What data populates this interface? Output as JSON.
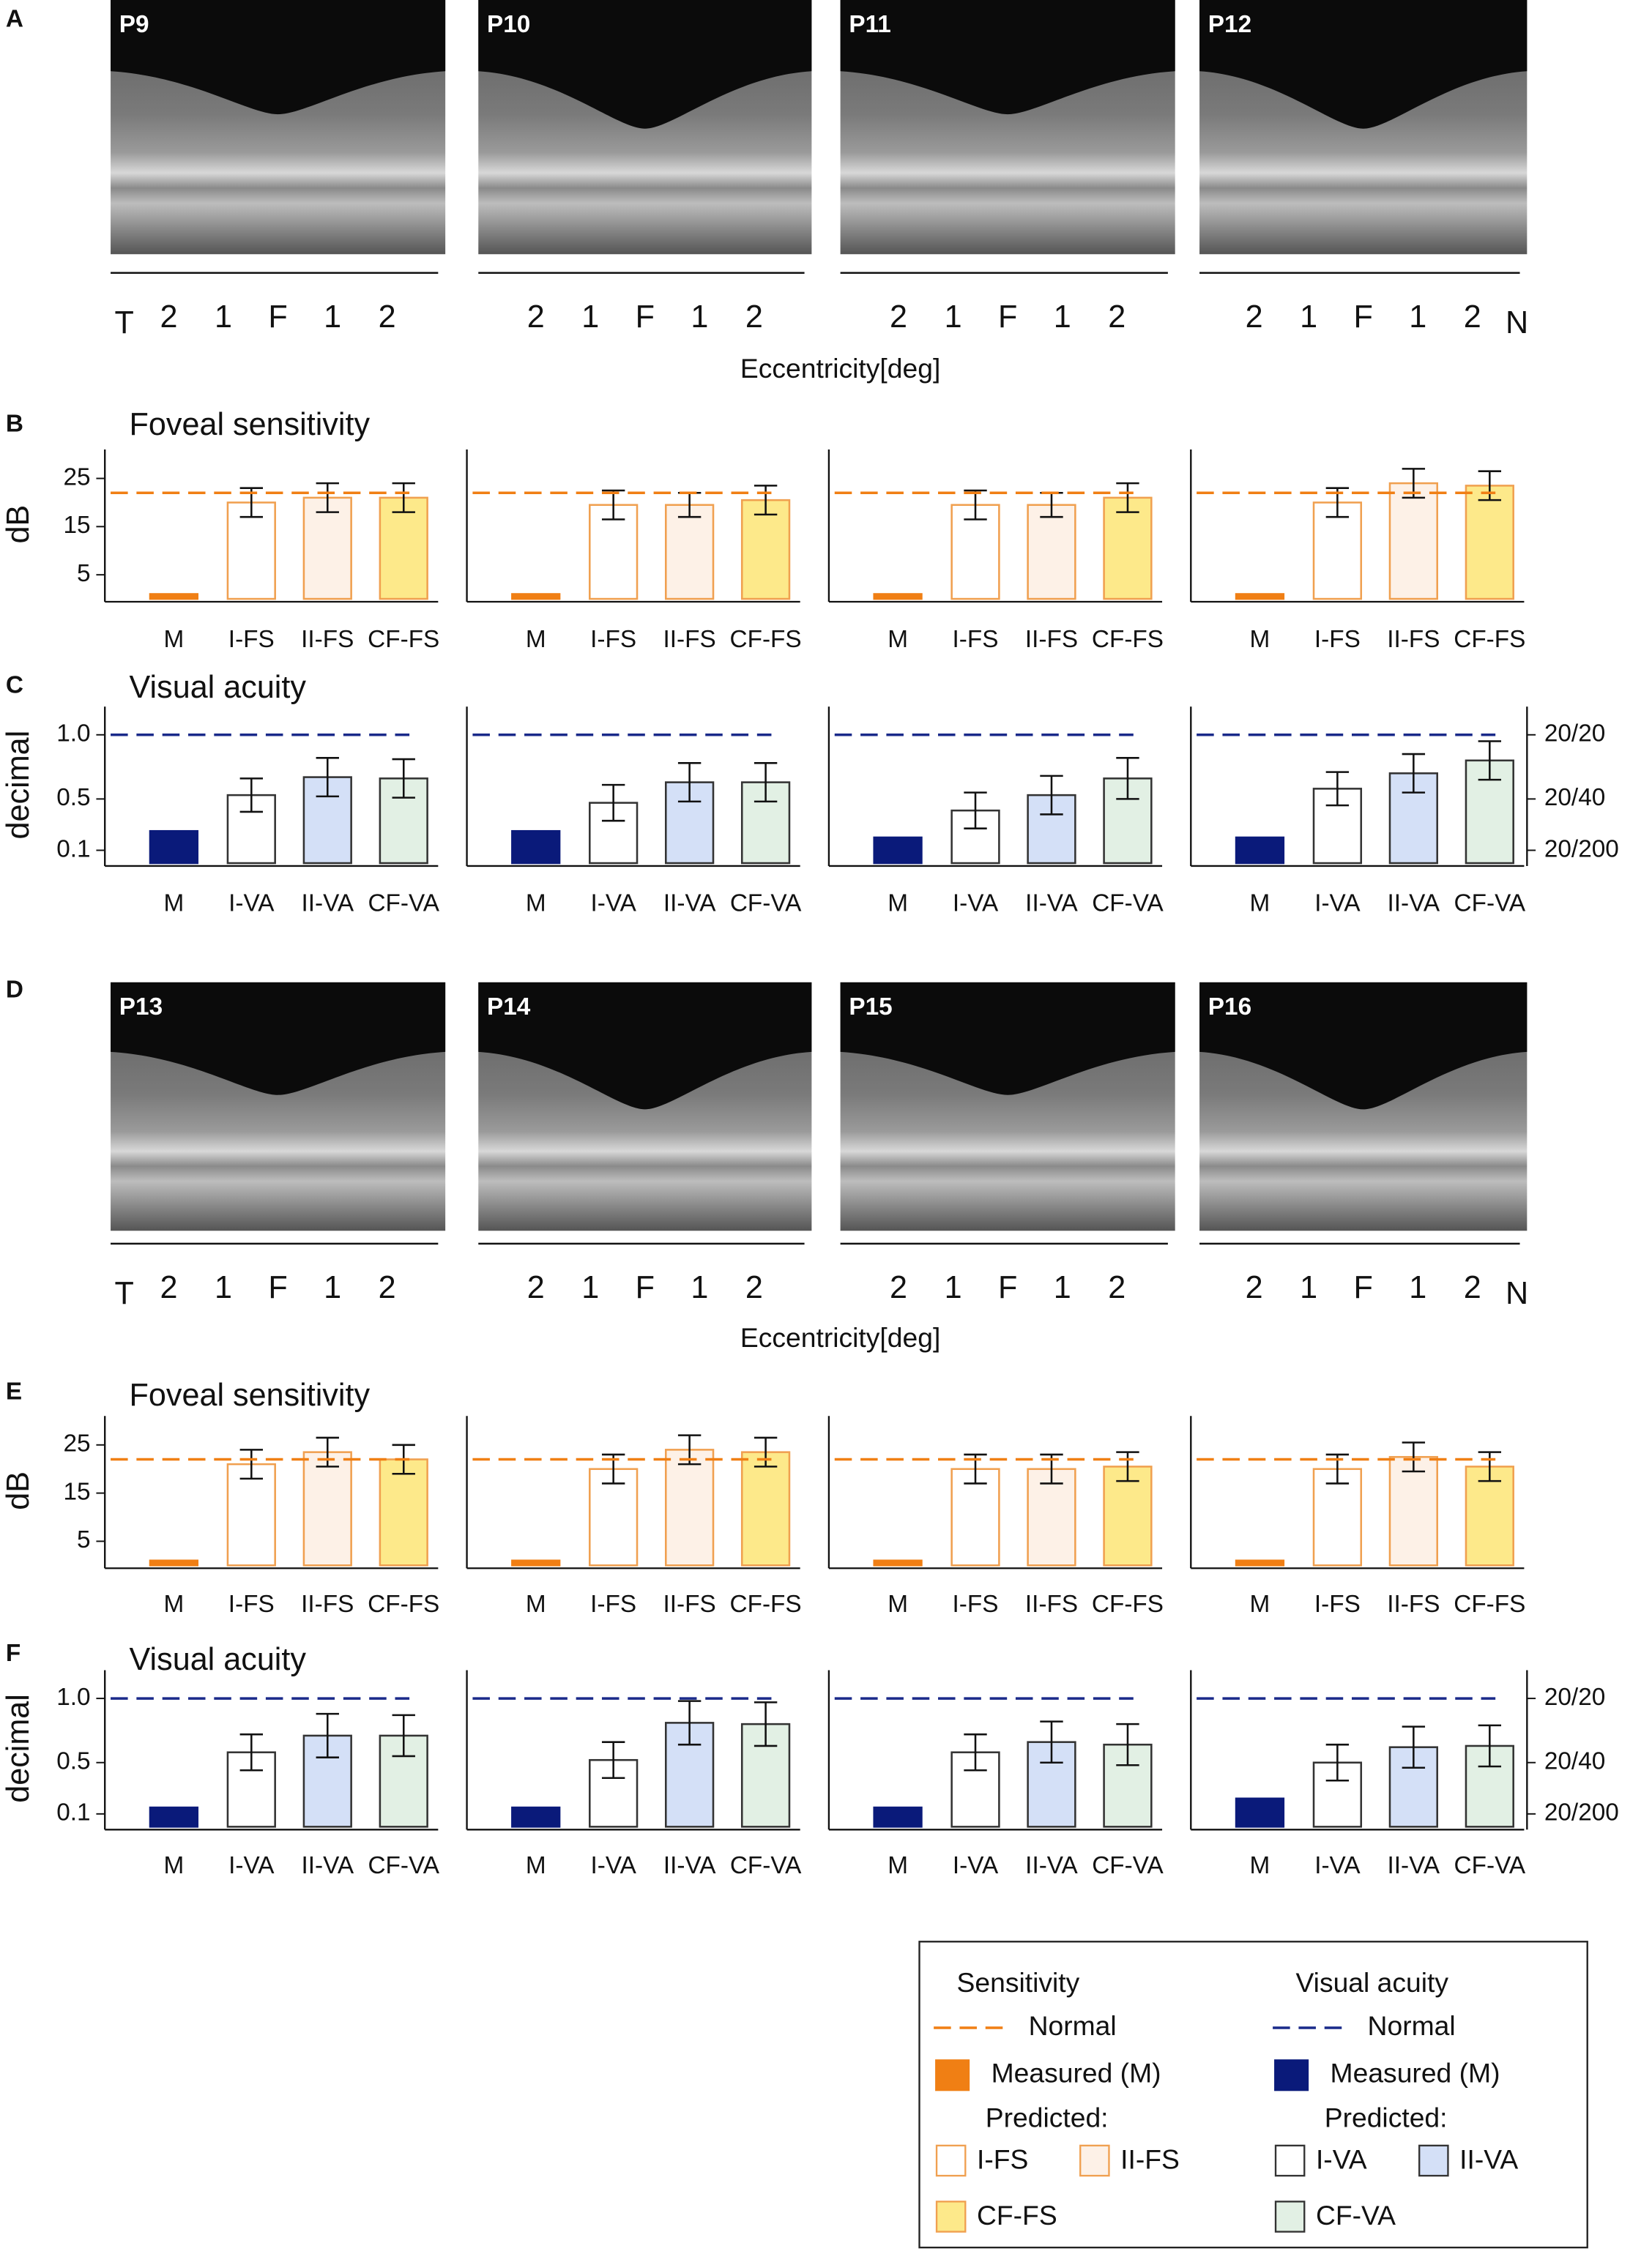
{
  "panel_letters": [
    "A",
    "B",
    "C",
    "D",
    "E",
    "F"
  ],
  "oct_rows": [
    {
      "xlabel": "Eccentricity[deg]",
      "panels": [
        {
          "label": "P9",
          "axis_labels": [
            "T",
            "2",
            "1",
            "F",
            "1",
            "2"
          ]
        },
        {
          "label": "P10",
          "axis_labels": [
            "2",
            "1",
            "F",
            "1",
            "2"
          ]
        },
        {
          "label": "P11",
          "axis_labels": [
            "2",
            "1",
            "F",
            "1",
            "2"
          ]
        },
        {
          "label": "P12",
          "axis_labels": [
            "2",
            "1",
            "F",
            "1",
            "2",
            "N"
          ]
        }
      ]
    },
    {
      "xlabel": "Eccentricity[deg]",
      "panels": [
        {
          "label": "P13",
          "axis_labels": [
            "T",
            "2",
            "1",
            "F",
            "1",
            "2"
          ]
        },
        {
          "label": "P14",
          "axis_labels": [
            "2",
            "1",
            "F",
            "1",
            "2"
          ]
        },
        {
          "label": "P15",
          "axis_labels": [
            "2",
            "1",
            "F",
            "1",
            "2"
          ]
        },
        {
          "label": "P16",
          "axis_labels": [
            "2",
            "1",
            "F",
            "1",
            "2",
            "N"
          ]
        }
      ]
    }
  ],
  "chart_data": [
    {
      "type": "bar",
      "title": "Foveal sensitivity",
      "ylabel": "dB",
      "categories": [
        "M",
        "I-FS",
        "II-FS",
        "CF-FS"
      ],
      "values": [
        1,
        20,
        21,
        21
      ],
      "errors": [
        null,
        3,
        3,
        3
      ],
      "colors": [
        "#f07f14",
        "#ffffff",
        "#fdf1e7",
        "#fde98a"
      ],
      "edge_colors": [
        "#f07f14",
        "#f0a050",
        "#f0a050",
        "#f0a050"
      ],
      "normal": 22,
      "normal_color": "#f07f14",
      "ylim": [
        0,
        31
      ],
      "yticks": [
        5,
        15,
        25
      ]
    },
    {
      "type": "bar",
      "categories": [
        "M",
        "I-FS",
        "II-FS",
        "CF-FS"
      ],
      "values": [
        1,
        19.5,
        19.5,
        20.5
      ],
      "errors": [
        null,
        3,
        2.5,
        3
      ],
      "colors": [
        "#f07f14",
        "#ffffff",
        "#fdf1e7",
        "#fde98a"
      ],
      "edge_colors": [
        "#f07f14",
        "#f0a050",
        "#f0a050",
        "#f0a050"
      ],
      "normal": 22,
      "normal_color": "#f07f14",
      "ylim": [
        0,
        31
      ]
    },
    {
      "type": "bar",
      "categories": [
        "M",
        "I-FS",
        "II-FS",
        "CF-FS"
      ],
      "values": [
        1,
        19.5,
        19.5,
        21
      ],
      "errors": [
        null,
        3,
        2.5,
        3
      ],
      "colors": [
        "#f07f14",
        "#ffffff",
        "#fdf1e7",
        "#fde98a"
      ],
      "edge_colors": [
        "#f07f14",
        "#f0a050",
        "#f0a050",
        "#f0a050"
      ],
      "normal": 22,
      "normal_color": "#f07f14",
      "ylim": [
        0,
        31
      ]
    },
    {
      "type": "bar",
      "categories": [
        "M",
        "I-FS",
        "II-FS",
        "CF-FS"
      ],
      "values": [
        1,
        20,
        24,
        23.5
      ],
      "errors": [
        null,
        3,
        3,
        3
      ],
      "colors": [
        "#f07f14",
        "#ffffff",
        "#fdf1e7",
        "#fde98a"
      ],
      "edge_colors": [
        "#f07f14",
        "#f0a050",
        "#f0a050",
        "#f0a050"
      ],
      "normal": 22,
      "normal_color": "#f07f14",
      "ylim": [
        0,
        31
      ]
    },
    {
      "type": "bar",
      "title": "Visual acuity",
      "ylabel": "decimal",
      "categories": [
        "M",
        "I-VA",
        "II-VA",
        "CF-VA"
      ],
      "values": [
        0.25,
        0.53,
        0.67,
        0.66
      ],
      "errors": [
        null,
        0.13,
        0.15,
        0.15
      ],
      "colors": [
        "#0a1a7a",
        "#ffffff",
        "#d4e0f7",
        "#e2f0e4"
      ],
      "edge_colors": [
        "#0a1a7a",
        "#333333",
        "#333333",
        "#333333"
      ],
      "normal": 1,
      "normal_color": "#1a2a8a",
      "ylim": [
        0,
        1.22
      ],
      "yticks": [
        0.1,
        0.5,
        {
          "value": 1,
          "label": "1.0"
        }
      ]
    },
    {
      "type": "bar",
      "categories": [
        "M",
        "I-VA",
        "II-VA",
        "CF-VA"
      ],
      "values": [
        0.25,
        0.47,
        0.63,
        0.63
      ],
      "errors": [
        null,
        0.14,
        0.15,
        0.15
      ],
      "colors": [
        "#0a1a7a",
        "#ffffff",
        "#d4e0f7",
        "#e2f0e4"
      ],
      "edge_colors": [
        "#0a1a7a",
        "#333333",
        "#333333",
        "#333333"
      ],
      "normal": 1,
      "normal_color": "#1a2a8a",
      "ylim": [
        0,
        1.22
      ]
    },
    {
      "type": "bar",
      "categories": [
        "M",
        "I-VA",
        "II-VA",
        "CF-VA"
      ],
      "values": [
        0.2,
        0.41,
        0.53,
        0.66
      ],
      "errors": [
        null,
        0.14,
        0.15,
        0.16
      ],
      "colors": [
        "#0a1a7a",
        "#ffffff",
        "#d4e0f7",
        "#e2f0e4"
      ],
      "edge_colors": [
        "#0a1a7a",
        "#333333",
        "#333333",
        "#333333"
      ],
      "normal": 1,
      "normal_color": "#1a2a8a",
      "ylim": [
        0,
        1.22
      ]
    },
    {
      "type": "bar",
      "categories": [
        "M",
        "I-VA",
        "II-VA",
        "CF-VA"
      ],
      "values": [
        0.2,
        0.58,
        0.7,
        0.8
      ],
      "errors": [
        null,
        0.13,
        0.15,
        0.15
      ],
      "colors": [
        "#0a1a7a",
        "#ffffff",
        "#d4e0f7",
        "#e2f0e4"
      ],
      "edge_colors": [
        "#0a1a7a",
        "#333333",
        "#333333",
        "#333333"
      ],
      "normal": 1,
      "normal_color": "#1a2a8a",
      "ylim": [
        0,
        1.22
      ],
      "y2lim": [
        0,
        1.22
      ],
      "y2ticks": [
        {
          "value": 1,
          "label": "20/20"
        },
        {
          "value": 0.5,
          "label": "20/40"
        },
        {
          "value": 0.1,
          "label": "20/200"
        }
      ]
    },
    {
      "type": "bar",
      "title": "Foveal sensitivity",
      "ylabel": "dB",
      "categories": [
        "M",
        "I-FS",
        "II-FS",
        "CF-FS"
      ],
      "values": [
        1,
        21,
        23.5,
        22
      ],
      "errors": [
        null,
        3,
        3,
        3
      ],
      "colors": [
        "#f07f14",
        "#ffffff",
        "#fdf1e7",
        "#fde98a"
      ],
      "edge_colors": [
        "#f07f14",
        "#f0a050",
        "#f0a050",
        "#f0a050"
      ],
      "normal": 22,
      "normal_color": "#f07f14",
      "ylim": [
        0,
        31
      ],
      "yticks": [
        5,
        15,
        25
      ]
    },
    {
      "type": "bar",
      "categories": [
        "M",
        "I-FS",
        "II-FS",
        "CF-FS"
      ],
      "values": [
        1,
        20,
        24,
        23.5
      ],
      "errors": [
        null,
        3,
        3,
        3
      ],
      "colors": [
        "#f07f14",
        "#ffffff",
        "#fdf1e7",
        "#fde98a"
      ],
      "edge_colors": [
        "#f07f14",
        "#f0a050",
        "#f0a050",
        "#f0a050"
      ],
      "normal": 22,
      "normal_color": "#f07f14",
      "ylim": [
        0,
        31
      ]
    },
    {
      "type": "bar",
      "categories": [
        "M",
        "I-FS",
        "II-FS",
        "CF-FS"
      ],
      "values": [
        1,
        20,
        20,
        20.5
      ],
      "errors": [
        null,
        3,
        3,
        3
      ],
      "colors": [
        "#f07f14",
        "#ffffff",
        "#fdf1e7",
        "#fde98a"
      ],
      "edge_colors": [
        "#f07f14",
        "#f0a050",
        "#f0a050",
        "#f0a050"
      ],
      "normal": 22,
      "normal_color": "#f07f14",
      "ylim": [
        0,
        31
      ]
    },
    {
      "type": "bar",
      "categories": [
        "M",
        "I-FS",
        "II-FS",
        "CF-FS"
      ],
      "values": [
        1,
        20,
        22.5,
        20.5
      ],
      "errors": [
        null,
        3,
        3,
        3
      ],
      "colors": [
        "#f07f14",
        "#ffffff",
        "#fdf1e7",
        "#fde98a"
      ],
      "edge_colors": [
        "#f07f14",
        "#f0a050",
        "#f0a050",
        "#f0a050"
      ],
      "normal": 22,
      "normal_color": "#f07f14",
      "ylim": [
        0,
        31
      ]
    },
    {
      "type": "bar",
      "title": "Visual acuity",
      "ylabel": "decimal",
      "categories": [
        "M",
        "I-VA",
        "II-VA",
        "CF-VA"
      ],
      "values": [
        0.15,
        0.58,
        0.71,
        0.71
      ],
      "errors": [
        null,
        0.14,
        0.17,
        0.16
      ],
      "colors": [
        "#0a1a7a",
        "#ffffff",
        "#d4e0f7",
        "#e2f0e4"
      ],
      "edge_colors": [
        "#0a1a7a",
        "#333333",
        "#333333",
        "#333333"
      ],
      "normal": 1,
      "normal_color": "#1a2a8a",
      "ylim": [
        0,
        1.22
      ],
      "yticks": [
        0.1,
        0.5,
        {
          "value": 1,
          "label": "1.0"
        }
      ]
    },
    {
      "type": "bar",
      "categories": [
        "M",
        "I-VA",
        "II-VA",
        "CF-VA"
      ],
      "values": [
        0.15,
        0.52,
        0.81,
        0.8
      ],
      "errors": [
        null,
        0.14,
        0.17,
        0.17
      ],
      "colors": [
        "#0a1a7a",
        "#ffffff",
        "#d4e0f7",
        "#e2f0e4"
      ],
      "edge_colors": [
        "#0a1a7a",
        "#333333",
        "#333333",
        "#333333"
      ],
      "normal": 1,
      "normal_color": "#1a2a8a",
      "ylim": [
        0,
        1.22
      ]
    },
    {
      "type": "bar",
      "categories": [
        "M",
        "I-VA",
        "II-VA",
        "CF-VA"
      ],
      "values": [
        0.15,
        0.58,
        0.66,
        0.64
      ],
      "errors": [
        null,
        0.14,
        0.16,
        0.16
      ],
      "colors": [
        "#0a1a7a",
        "#ffffff",
        "#d4e0f7",
        "#e2f0e4"
      ],
      "edge_colors": [
        "#0a1a7a",
        "#333333",
        "#333333",
        "#333333"
      ],
      "normal": 1,
      "normal_color": "#1a2a8a",
      "ylim": [
        0,
        1.22
      ]
    },
    {
      "type": "bar",
      "categories": [
        "M",
        "I-VA",
        "II-VA",
        "CF-VA"
      ],
      "values": [
        0.22,
        0.5,
        0.62,
        0.63
      ],
      "errors": [
        null,
        0.14,
        0.16,
        0.16
      ],
      "colors": [
        "#0a1a7a",
        "#ffffff",
        "#d4e0f7",
        "#e2f0e4"
      ],
      "edge_colors": [
        "#0a1a7a",
        "#333333",
        "#333333",
        "#333333"
      ],
      "normal": 1,
      "normal_color": "#1a2a8a",
      "ylim": [
        0,
        1.22
      ],
      "y2lim": [
        0,
        1.22
      ],
      "y2ticks": [
        {
          "value": 1,
          "label": "20/20"
        },
        {
          "value": 0.5,
          "label": "20/40"
        },
        {
          "value": 0.1,
          "label": "20/200"
        }
      ]
    }
  ],
  "legend": {
    "sensitivity": {
      "title": "Sensitivity",
      "normal": "Normal",
      "measured": "Measured (M)",
      "predicted": "Predicted:",
      "items": [
        "I-FS",
        "II-FS",
        "CF-FS"
      ]
    },
    "visual_acuity": {
      "title": "Visual acuity",
      "normal": "Normal",
      "measured": "Measured (M)",
      "predicted": "Predicted:",
      "items": [
        "I-VA",
        "II-VA",
        "CF-VA"
      ]
    }
  }
}
